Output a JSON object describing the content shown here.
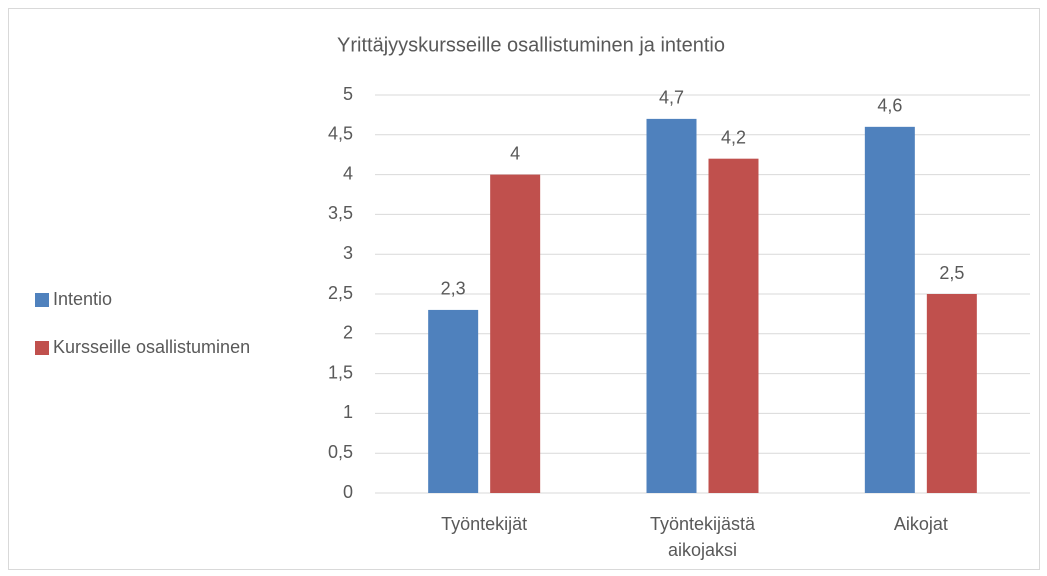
{
  "chart_data": {
    "type": "bar",
    "title": "Yrittäjyyskursseille osallistuminen ja intentio",
    "categories": [
      "Työntekijät",
      "Työntekijästä aikojaksi",
      "Aikojat"
    ],
    "series": [
      {
        "name": "Intentio",
        "color": "#4f81bd",
        "values": [
          2.3,
          4.7,
          4.6
        ],
        "value_labels": [
          "2,3",
          "4,7",
          "4,6"
        ]
      },
      {
        "name": "Kursseille osallistuminen",
        "color": "#c0504d",
        "values": [
          4,
          4.2,
          2.5
        ],
        "value_labels": [
          "4",
          "4,2",
          "2,5"
        ]
      }
    ],
    "ylim": [
      0,
      5
    ],
    "yticks": [
      0,
      {
        "value": 0.5,
        "label": "0,5"
      },
      1,
      {
        "value": 1.5,
        "label": "1,5"
      },
      2,
      {
        "value": 2.5,
        "label": "2,5"
      },
      3,
      {
        "value": 3.5,
        "label": "3,5"
      },
      4,
      {
        "value": 4.5,
        "label": "4,5"
      },
      5
    ],
    "grid": true,
    "legend": "left"
  }
}
